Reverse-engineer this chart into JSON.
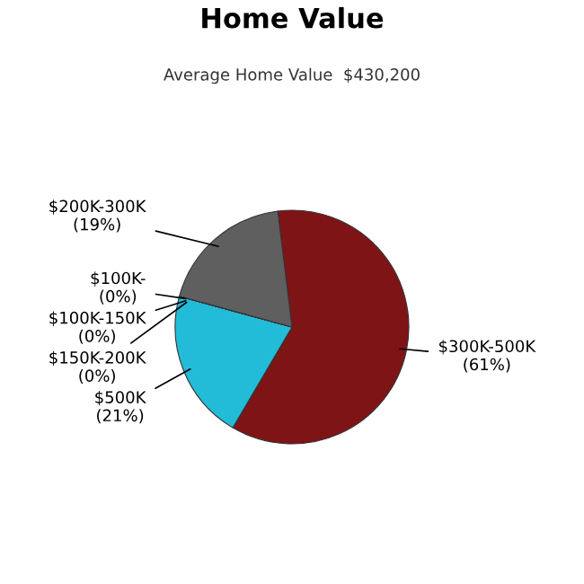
{
  "chart_data": {
    "type": "pie",
    "title": "Home Value",
    "subtitle": "Average Home Value  $430,200",
    "categories": [
      "$300K-500K",
      "$500K",
      "$150K-200K",
      "$100K-150K",
      "$100K-",
      "$200K-300K"
    ],
    "values": [
      61,
      21,
      0,
      0,
      0,
      19
    ],
    "value_labels": [
      "(61%)",
      "(21%)",
      "(0%)",
      "(0%)",
      "(0%)",
      "(19%)"
    ],
    "colors": [
      "#7f1416",
      "#22bcd8",
      "#e0a030",
      "#4a7a30",
      "#3050a0",
      "#5f5f5f"
    ]
  }
}
